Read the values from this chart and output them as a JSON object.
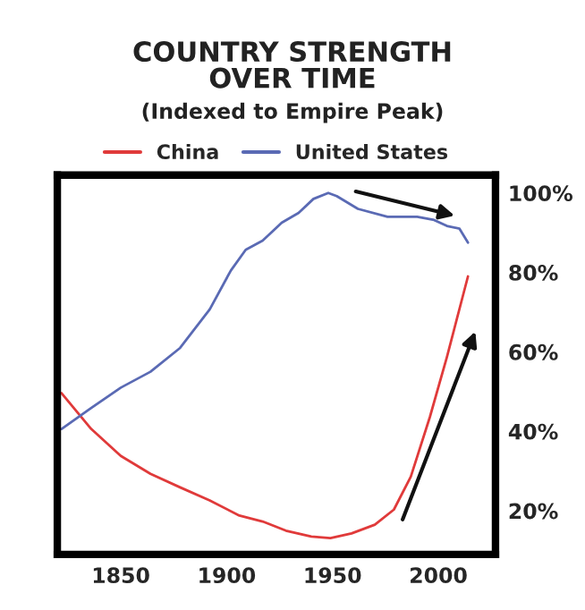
{
  "chart_data": {
    "type": "line",
    "title": "COUNTRY STRENGTH\nOVER TIME",
    "subtitle": "(Indexed to Empire Peak)",
    "xlim": [
      1820,
      2027
    ],
    "xticks": [
      1850,
      1900,
      1950,
      2000
    ],
    "ylim": [
      9,
      104.5
    ],
    "yticks": [
      {
        "value": 20,
        "label": "20%"
      },
      {
        "value": 40,
        "label": "40%"
      },
      {
        "value": 60,
        "label": "60%"
      },
      {
        "value": 80,
        "label": "80%"
      },
      {
        "value": 100,
        "label": "100%"
      }
    ],
    "legend": "top",
    "grid": false,
    "series": [
      {
        "name": "China",
        "color": "#e03a3a",
        "x": [
          1822,
          1836,
          1850,
          1864,
          1878,
          1892,
          1906,
          1917,
          1928,
          1940,
          1949,
          1959,
          1970,
          1979,
          1987,
          1996,
          2004,
          2014
        ],
        "values": [
          49.6,
          40.6,
          33.8,
          29.3,
          25.9,
          22.6,
          18.8,
          17.3,
          15,
          13.5,
          13.1,
          14.3,
          16.5,
          20.3,
          28.6,
          43.6,
          58.6,
          79
        ]
      },
      {
        "name": "United States",
        "color": "#5a6ab4",
        "x": [
          1822,
          1836,
          1850,
          1864,
          1878,
          1892,
          1902,
          1909,
          1917,
          1926,
          1934,
          1941,
          1948,
          1952,
          1962,
          1976,
          1990,
          1998,
          2004,
          2010,
          2014
        ],
        "values": [
          40.6,
          45.9,
          51,
          55,
          61,
          70.7,
          80.5,
          85.7,
          88,
          92.5,
          95,
          98.5,
          100,
          99.2,
          96,
          94,
          94,
          93.2,
          91.7,
          91,
          87.5
        ]
      }
    ]
  }
}
